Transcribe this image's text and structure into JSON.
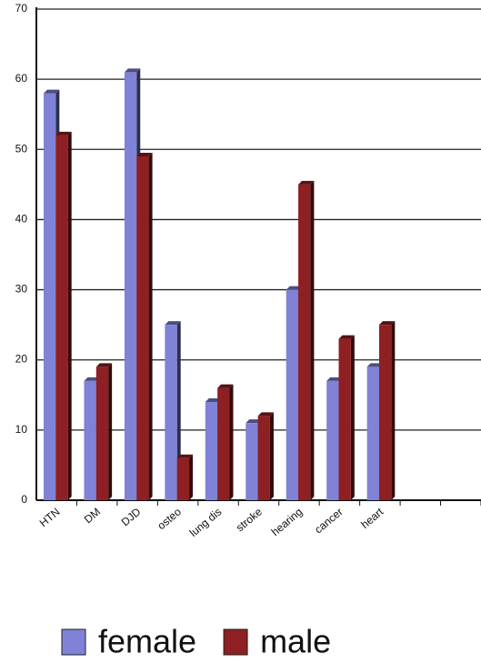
{
  "chart_data": {
    "type": "bar",
    "categories": [
      "HTN",
      "DM",
      "DJD",
      "osteo",
      "lung dis",
      "stroke",
      "hearing",
      "cancer",
      "heart",
      null,
      null
    ],
    "series": [
      {
        "name": "female",
        "color": "#7f82d6",
        "values": [
          58,
          17,
          61,
          25,
          14,
          11,
          30,
          17,
          19,
          null,
          null
        ]
      },
      {
        "name": "male",
        "color": "#8e1f22",
        "values": [
          52,
          19,
          49,
          6,
          16,
          12,
          45,
          23,
          25,
          null,
          null
        ]
      }
    ],
    "ylim": [
      0,
      70
    ],
    "yticks": [
      0,
      10,
      20,
      30,
      40,
      50,
      60,
      70
    ],
    "grid": true,
    "legend": "bottom"
  }
}
